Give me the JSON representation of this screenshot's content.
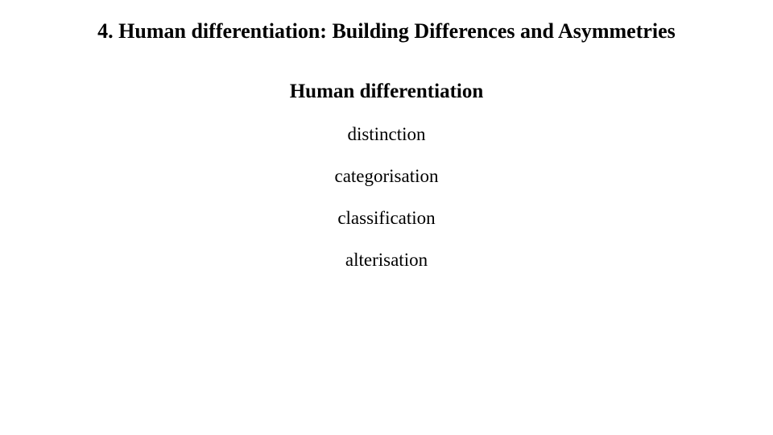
{
  "heading": "4. Human differentiation: Building Differences and Asymmetries",
  "subheading": "Human differentiation",
  "items": [
    "distinction",
    "categorisation",
    "classification",
    "alterisation"
  ],
  "style": {
    "background_color": "#ffffff",
    "text_color": "#000000",
    "font_family": "Times New Roman",
    "heading_fontsize": 26,
    "heading_fontweight": "bold",
    "subheading_fontsize": 25,
    "subheading_fontweight": "bold",
    "item_fontsize": 23,
    "item_fontweight": "normal",
    "text_align": "center"
  }
}
